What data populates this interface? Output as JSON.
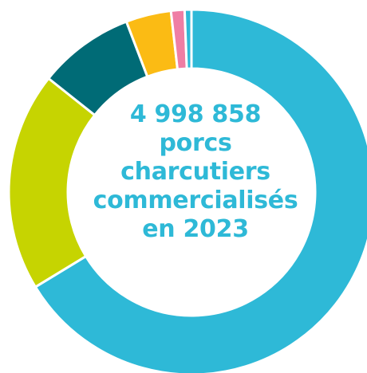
{
  "center_text": {
    "line1": "4 998 858",
    "line2": "porcs",
    "line3": "charcutiers",
    "line4": "commercialisés",
    "line5": "en 2023"
  },
  "colors": {
    "text": "#2eb9d7",
    "separator": "#ffffff"
  },
  "chart_data": {
    "type": "pie",
    "title": "",
    "slices": [
      {
        "value": 66.3,
        "color": "#2eb9d7"
      },
      {
        "value": 19.4,
        "color": "#c6d401"
      },
      {
        "value": 8.5,
        "color": "#006b76"
      },
      {
        "value": 4.0,
        "color": "#fbbb14"
      },
      {
        "value": 1.2,
        "color": "#ef7ea4"
      },
      {
        "value": 0.6,
        "color": "#2eb9d7"
      }
    ]
  }
}
